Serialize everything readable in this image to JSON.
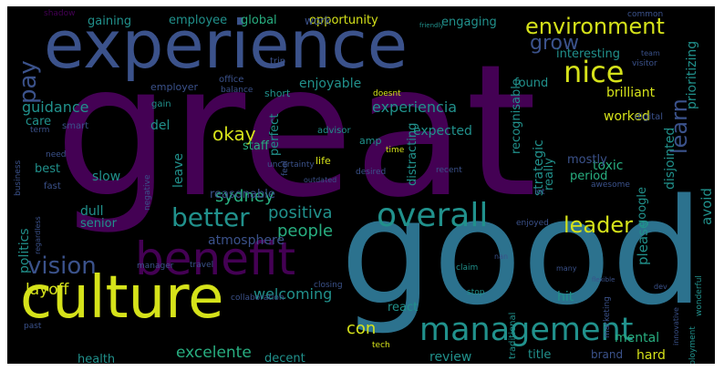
{
  "palette": {
    "background": "#000000",
    "purple": "#482878",
    "dark_purple": "#440154",
    "blue": "#3b528b",
    "teal": "#2c728e",
    "green_teal": "#21918c",
    "green": "#28ae80",
    "lime": "#5ec962",
    "yellow": "#d5e21a"
  },
  "words": [
    {
      "text": "great"
    },
    {
      "text": "good"
    },
    {
      "text": "experience"
    },
    {
      "text": "culture"
    },
    {
      "text": "benefit"
    },
    {
      "text": "overall"
    },
    {
      "text": "management"
    },
    {
      "text": "environment"
    },
    {
      "text": "nice"
    },
    {
      "text": "better"
    },
    {
      "text": "vision"
    },
    {
      "text": "leader"
    },
    {
      "text": "grow"
    },
    {
      "text": "pay"
    },
    {
      "text": "learn"
    },
    {
      "text": "people"
    },
    {
      "text": "guidance"
    },
    {
      "text": "experiencia"
    },
    {
      "text": "sydney"
    },
    {
      "text": "okay"
    },
    {
      "text": "positiva"
    },
    {
      "text": "layoff"
    },
    {
      "text": "excelente"
    },
    {
      "text": "con"
    },
    {
      "text": "mental"
    },
    {
      "text": "welcoming"
    },
    {
      "text": "atmosphere"
    },
    {
      "text": "review"
    },
    {
      "text": "health"
    },
    {
      "text": "decent"
    },
    {
      "text": "hard"
    },
    {
      "text": "brand"
    },
    {
      "text": "title"
    },
    {
      "text": "react"
    },
    {
      "text": "hit"
    },
    {
      "text": "please"
    },
    {
      "text": "avoid"
    },
    {
      "text": "google"
    },
    {
      "text": "toxic"
    },
    {
      "text": "worked"
    },
    {
      "text": "period"
    },
    {
      "text": "mostly"
    },
    {
      "text": "disjointed"
    },
    {
      "text": "prioritizing"
    },
    {
      "text": "brilliant"
    },
    {
      "text": "found"
    },
    {
      "text": "expected"
    },
    {
      "text": "strategic"
    },
    {
      "text": "recognisable"
    },
    {
      "text": "really"
    },
    {
      "text": "distracting"
    },
    {
      "text": "amp"
    },
    {
      "text": "staff"
    },
    {
      "text": "reasonable"
    },
    {
      "text": "leave"
    },
    {
      "text": "del"
    },
    {
      "text": "slow"
    },
    {
      "text": "dull"
    },
    {
      "text": "senior"
    },
    {
      "text": "politics"
    },
    {
      "text": "best"
    },
    {
      "text": "care"
    },
    {
      "text": "enjoyable"
    },
    {
      "text": "perfect"
    },
    {
      "text": "employee"
    },
    {
      "text": "gaining"
    },
    {
      "text": "global"
    },
    {
      "text": "opportunity"
    },
    {
      "text": "engaging"
    },
    {
      "text": "interesting"
    },
    {
      "text": "employer"
    },
    {
      "text": "office"
    },
    {
      "text": "trip"
    },
    {
      "text": "balance"
    },
    {
      "text": "short"
    },
    {
      "text": "gain"
    },
    {
      "text": "advisor"
    },
    {
      "text": "uncertainty"
    },
    {
      "text": "life"
    },
    {
      "text": "time"
    },
    {
      "text": "desired"
    },
    {
      "text": "enjoyed"
    },
    {
      "text": "recent"
    },
    {
      "text": "lot"
    },
    {
      "text": "awesome"
    },
    {
      "text": "digital"
    },
    {
      "text": "doesnt"
    },
    {
      "text": "wonderful"
    },
    {
      "text": "innovative"
    },
    {
      "text": "employment"
    },
    {
      "text": "marketing"
    },
    {
      "text": "traditional"
    },
    {
      "text": "career"
    },
    {
      "text": "tech"
    },
    {
      "text": "stop"
    },
    {
      "text": "claim"
    },
    {
      "text": "closing"
    },
    {
      "text": "collaboration"
    },
    {
      "text": "manager"
    },
    {
      "text": "travel"
    },
    {
      "text": "gone"
    },
    {
      "text": "loved"
    },
    {
      "text": "past"
    },
    {
      "text": "nan"
    },
    {
      "text": "dev"
    },
    {
      "text": "many"
    },
    {
      "text": "flexible"
    },
    {
      "text": "fast"
    },
    {
      "text": "term"
    },
    {
      "text": "smart"
    },
    {
      "text": "business"
    },
    {
      "text": "need"
    },
    {
      "text": "negative"
    },
    {
      "text": "feel"
    },
    {
      "text": "regardless"
    },
    {
      "text": "outdated"
    },
    {
      "text": "shadow"
    },
    {
      "text": "friendly"
    },
    {
      "text": "common"
    },
    {
      "text": "visitor"
    },
    {
      "text": "work"
    },
    {
      "text": "team"
    }
  ]
}
